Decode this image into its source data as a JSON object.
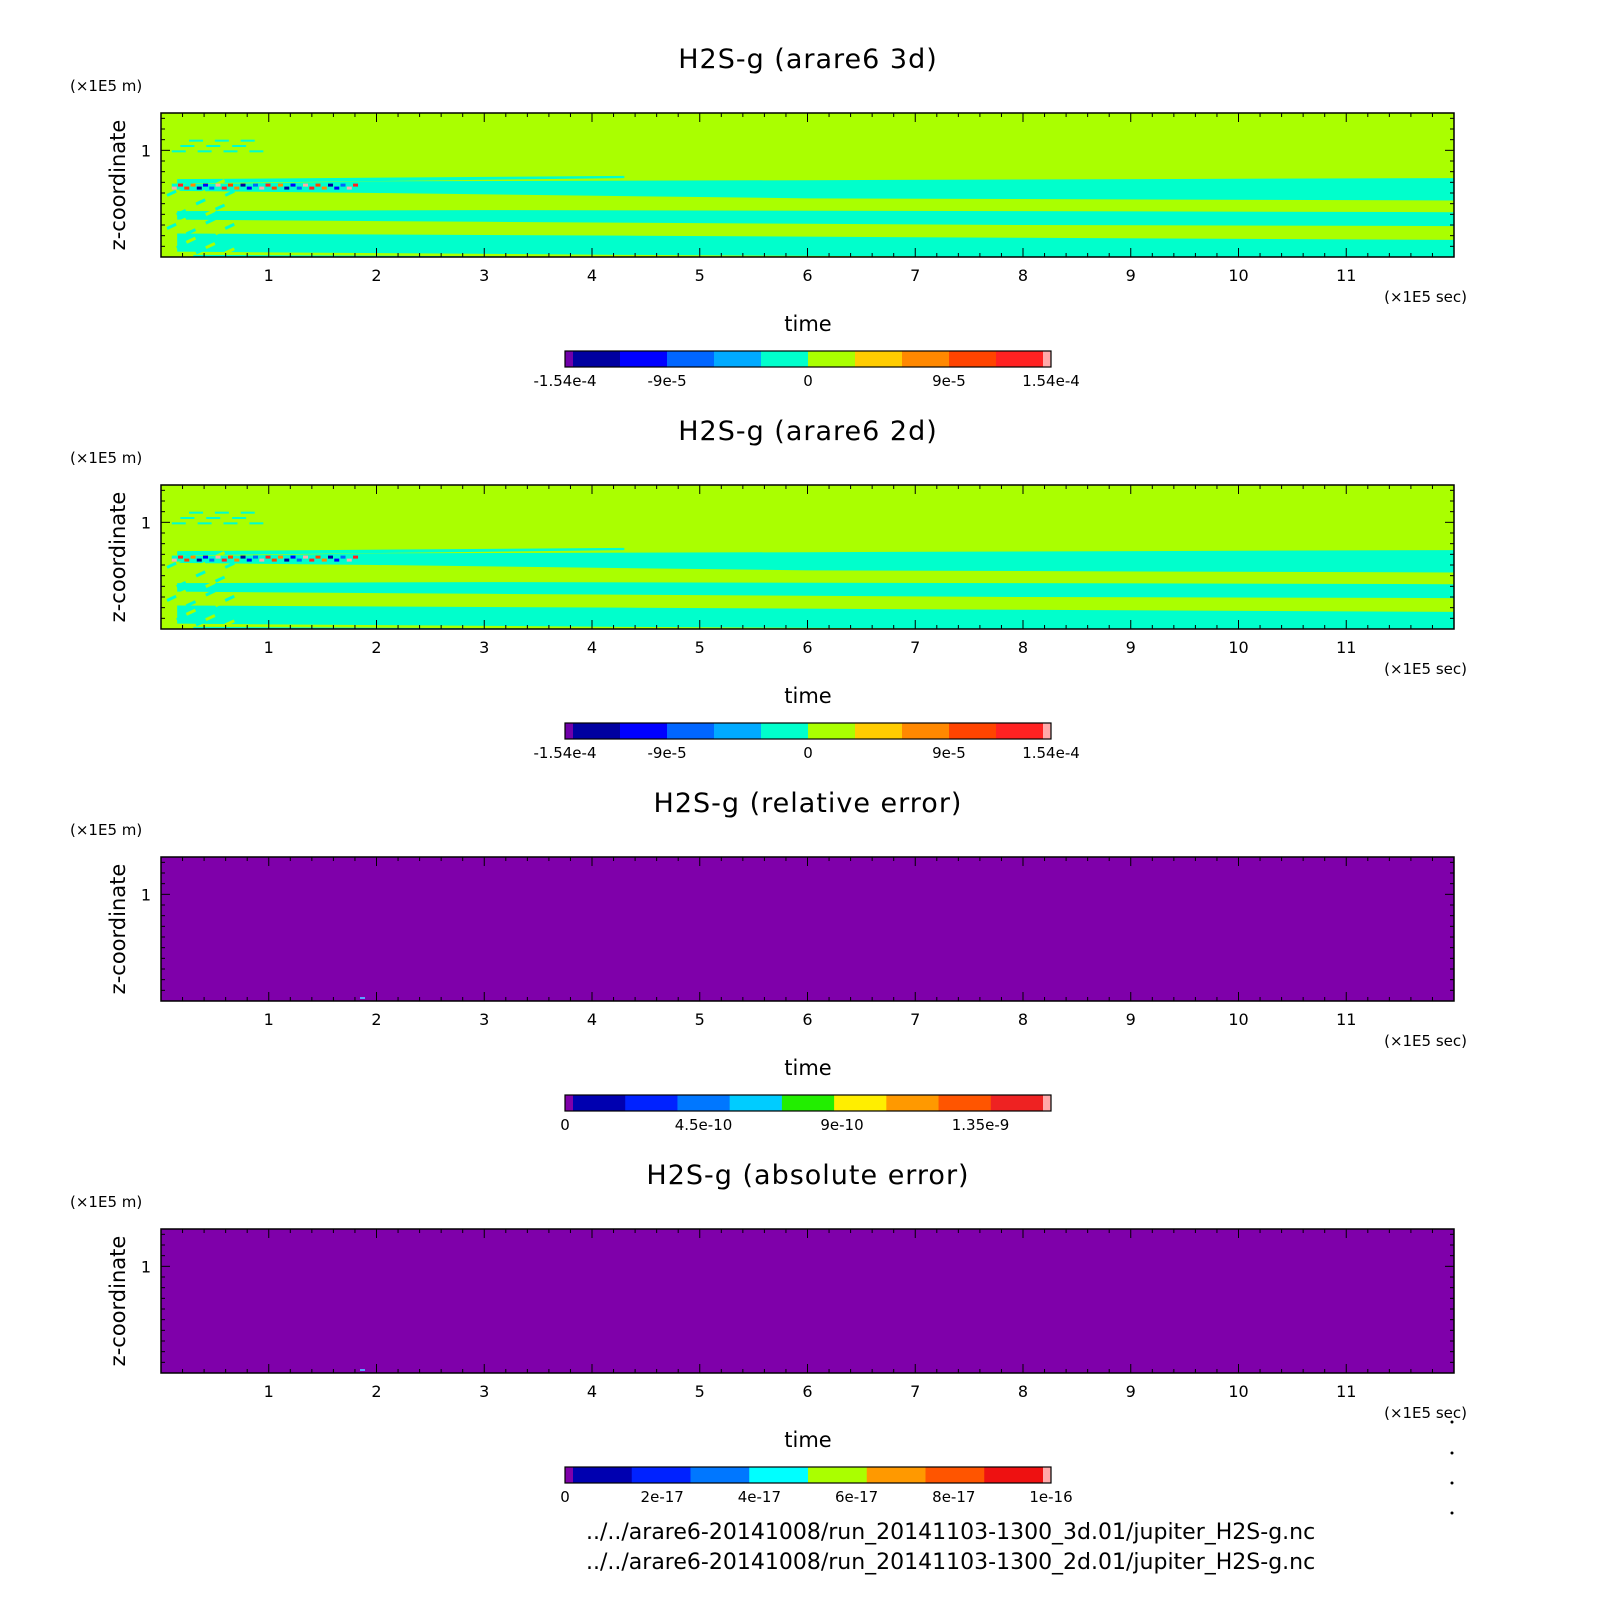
{
  "chart_data": [
    {
      "type": "heatmap",
      "title": "H2S-g (arare6 3d)",
      "xlabel": "time",
      "ylabel": "z-coordinate",
      "x_unit": "(×1E5 sec)",
      "y_unit": "(×1E5 m)",
      "xlim": [
        0,
        12
      ],
      "ylim": [
        0,
        1.35
      ],
      "x_ticks": [
        "1",
        "2",
        "3",
        "4",
        "5",
        "6",
        "7",
        "8",
        "9",
        "10",
        "11"
      ],
      "y_ticks": [
        "1"
      ],
      "grid": false,
      "field": "wave",
      "colorbar": {
        "colors": [
          "#7000aa",
          "#0000a0",
          "#0000ff",
          "#0066ff",
          "#00aaff",
          "#00ffcc",
          "#aaff00",
          "#ffcc00",
          "#ff8800",
          "#ff4400",
          "#ff2222",
          "#ffaaaa"
        ],
        "tick_labels": [
          "-1.54e-4",
          "-9e-5",
          "0",
          "9e-5",
          "1.54e-4"
        ],
        "tick_positions": [
          0,
          0.21,
          0.5,
          0.79,
          1
        ]
      }
    },
    {
      "type": "heatmap",
      "title": "H2S-g (arare6 2d)",
      "xlabel": "time",
      "ylabel": "z-coordinate",
      "x_unit": "(×1E5 sec)",
      "y_unit": "(×1E5 m)",
      "xlim": [
        0,
        12
      ],
      "ylim": [
        0,
        1.35
      ],
      "x_ticks": [
        "1",
        "2",
        "3",
        "4",
        "5",
        "6",
        "7",
        "8",
        "9",
        "10",
        "11"
      ],
      "y_ticks": [
        "1"
      ],
      "grid": false,
      "field": "wave",
      "colorbar": {
        "colors": [
          "#7000aa",
          "#0000a0",
          "#0000ff",
          "#0066ff",
          "#00aaff",
          "#00ffcc",
          "#aaff00",
          "#ffcc00",
          "#ff8800",
          "#ff4400",
          "#ff2222",
          "#ffaaaa"
        ],
        "tick_labels": [
          "-1.54e-4",
          "-9e-5",
          "0",
          "9e-5",
          "1.54e-4"
        ],
        "tick_positions": [
          0,
          0.21,
          0.5,
          0.79,
          1
        ]
      }
    },
    {
      "type": "heatmap",
      "title": "H2S-g (relative error)",
      "xlabel": "time",
      "ylabel": "z-coordinate",
      "x_unit": "(×1E5 sec)",
      "y_unit": "(×1E5 m)",
      "xlim": [
        0,
        12
      ],
      "ylim": [
        0,
        1.35
      ],
      "x_ticks": [
        "1",
        "2",
        "3",
        "4",
        "5",
        "6",
        "7",
        "8",
        "9",
        "10",
        "11"
      ],
      "y_ticks": [
        "1"
      ],
      "grid": false,
      "field": "uniform",
      "uniform_color": "#7f00aa",
      "colorbar": {
        "colors": [
          "#7f00aa",
          "#0000b0",
          "#0022ff",
          "#0077ff",
          "#00ccff",
          "#22ee00",
          "#ffee00",
          "#ff9900",
          "#ff5500",
          "#ee2222",
          "#ffaaaa"
        ],
        "tick_labels": [
          "0",
          "4.5e-10",
          "9e-10",
          "1.35e-9"
        ],
        "tick_positions": [
          0,
          0.285,
          0.57,
          0.855
        ]
      }
    },
    {
      "type": "heatmap",
      "title": "H2S-g (absolute error)",
      "xlabel": "time",
      "ylabel": "z-coordinate",
      "x_unit": "(×1E5 sec)",
      "y_unit": "(×1E5 m)",
      "xlim": [
        0,
        12
      ],
      "ylim": [
        0,
        1.35
      ],
      "x_ticks": [
        "1",
        "2",
        "3",
        "4",
        "5",
        "6",
        "7",
        "8",
        "9",
        "10",
        "11"
      ],
      "y_ticks": [
        "1"
      ],
      "grid": false,
      "field": "uniform",
      "uniform_color": "#7f00aa",
      "colorbar": {
        "colors": [
          "#7f00aa",
          "#0000b0",
          "#0022ff",
          "#0077ff",
          "#00ffff",
          "#aaff00",
          "#ff9900",
          "#ff5500",
          "#ee1111",
          "#ffaaaa"
        ],
        "tick_labels": [
          "0",
          "2e-17",
          "4e-17",
          "6e-17",
          "8e-17",
          "1e-16"
        ],
        "tick_positions": [
          0,
          0.2,
          0.4,
          0.6,
          0.8,
          1
        ]
      }
    }
  ],
  "footer": {
    "line1": "../../arare6-20141008/run_20141103-1300_3d.01/jupiter_H2S-g.nc",
    "line2": "../../arare6-20141008/run_20141103-1300_2d.01/jupiter_H2S-g.nc"
  }
}
